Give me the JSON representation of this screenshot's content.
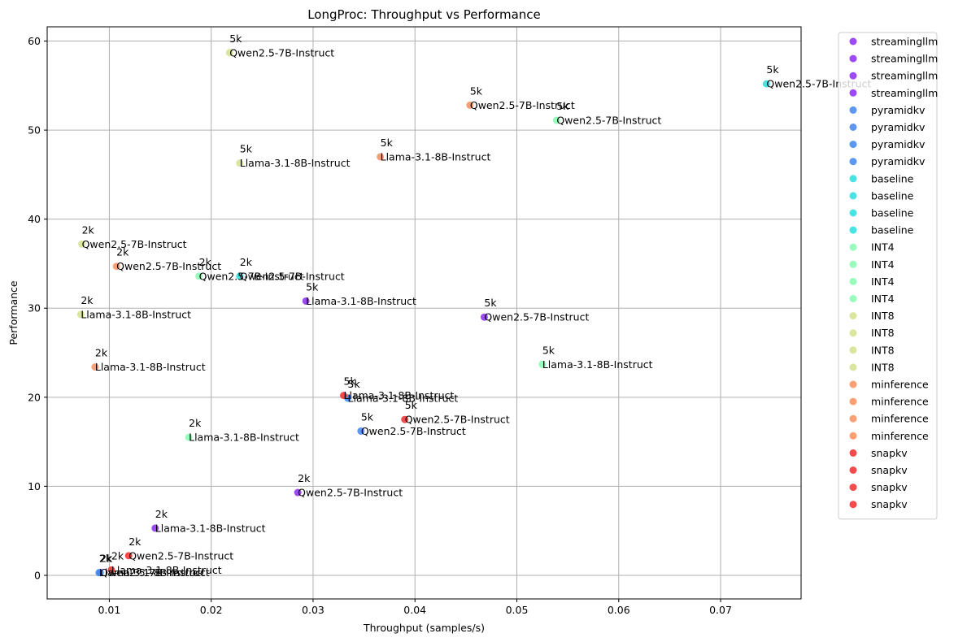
{
  "chart_data": {
    "type": "scatter",
    "title": "LongProc: Throughput vs Performance",
    "xlabel": "Throughput (samples/s)",
    "ylabel": "Performance",
    "xlim": [
      0.0039,
      0.0779
    ],
    "ylim": [
      -2.65,
      61.6
    ],
    "xticks": [
      "0.01",
      "0.02",
      "0.03",
      "0.04",
      "0.05",
      "0.06",
      "0.07"
    ],
    "yticks": [
      "0",
      "10",
      "20",
      "30",
      "40",
      "50",
      "60"
    ],
    "grid": true,
    "legend_position": "outside-right",
    "legend": [
      "streamingllm",
      "streamingllm",
      "streamingllm",
      "streamingllm",
      "pyramidkv",
      "pyramidkv",
      "pyramidkv",
      "pyramidkv",
      "baseline",
      "baseline",
      "baseline",
      "baseline",
      "INT4",
      "INT4",
      "INT4",
      "INT4",
      "INT8",
      "INT8",
      "INT8",
      "INT8",
      "minference",
      "minference",
      "minference",
      "minference",
      "snapkv",
      "snapkv",
      "snapkv",
      "snapkv"
    ],
    "series": [
      {
        "name": "streamingllm",
        "color": "#8b2cf5",
        "points": [
          {
            "x": 0.0145,
            "y": 5.3,
            "length": "2k",
            "model": "Llama-3.1-8B-Instruct"
          },
          {
            "x": 0.0285,
            "y": 9.3,
            "length": "2k",
            "model": "Qwen2.5-7B-Instruct"
          },
          {
            "x": 0.0293,
            "y": 30.8,
            "length": "5k",
            "model": "Llama-3.1-8B-Instruct"
          },
          {
            "x": 0.0468,
            "y": 29.0,
            "length": "5k",
            "model": "Qwen2.5-7B-Instruct"
          }
        ]
      },
      {
        "name": "pyramidkv",
        "color": "#3f85f0",
        "points": [
          {
            "x": 0.009,
            "y": 0.3,
            "length": "2k",
            "model": "Llama-3.1-8B-Instruct"
          },
          {
            "x": 0.0091,
            "y": 0.3,
            "length": "2k",
            "model": "Qwen2.5-7B-Instruct"
          },
          {
            "x": 0.0334,
            "y": 19.9,
            "length": "5k",
            "model": "Llama-3.1-8B-Instruct"
          },
          {
            "x": 0.0347,
            "y": 16.2,
            "length": "5k",
            "model": "Qwen2.5-7B-Instruct"
          }
        ]
      },
      {
        "name": "baseline",
        "color": "#2adddd",
        "points": [
          {
            "x": 0.0228,
            "y": 33.6,
            "length": "2k",
            "model": "Qwen2.5-7B-Instruct"
          },
          {
            "x": 0.0745,
            "y": 55.2,
            "length": "5k",
            "model": "Qwen2.5-7B-Instruct"
          }
        ]
      },
      {
        "name": "INT4",
        "color": "#86fcb2",
        "points": [
          {
            "x": 0.0178,
            "y": 15.5,
            "length": "2k",
            "model": "Llama-3.1-8B-Instruct"
          },
          {
            "x": 0.0188,
            "y": 33.6,
            "length": "2k",
            "model": "Qwen2.5-7B-Instruct"
          },
          {
            "x": 0.0525,
            "y": 23.7,
            "length": "5k",
            "model": "Llama-3.1-8B-Instruct"
          },
          {
            "x": 0.0539,
            "y": 51.1,
            "length": "5k",
            "model": "Qwen2.5-7B-Instruct"
          }
        ]
      },
      {
        "name": "INT8",
        "color": "#d4e18c",
        "points": [
          {
            "x": 0.0072,
            "y": 29.3,
            "length": "2k",
            "model": "Llama-3.1-8B-Instruct"
          },
          {
            "x": 0.0073,
            "y": 37.2,
            "length": "2k",
            "model": "Qwen2.5-7B-Instruct"
          },
          {
            "x": 0.0228,
            "y": 46.3,
            "length": "5k",
            "model": "Llama-3.1-8B-Instruct"
          },
          {
            "x": 0.0218,
            "y": 58.7,
            "length": "5k",
            "model": "Qwen2.5-7B-Instruct"
          }
        ]
      },
      {
        "name": "minference",
        "color": "#fb8f5a",
        "points": [
          {
            "x": 0.0086,
            "y": 23.4,
            "length": "2k",
            "model": "Llama-3.1-8B-Instruct"
          },
          {
            "x": 0.0107,
            "y": 34.7,
            "length": "2k",
            "model": "Qwen2.5-7B-Instruct"
          },
          {
            "x": 0.0366,
            "y": 47.0,
            "length": "5k",
            "model": "Llama-3.1-8B-Instruct"
          },
          {
            "x": 0.0454,
            "y": 52.8,
            "length": "5k",
            "model": "Qwen2.5-7B-Instruct"
          }
        ]
      },
      {
        "name": "snapkv",
        "color": "#f22d2d",
        "points": [
          {
            "x": 0.0102,
            "y": 0.6,
            "length": "2k",
            "model": "Llama-3.1-8B-Instruct"
          },
          {
            "x": 0.0119,
            "y": 2.2,
            "length": "2k",
            "model": "Qwen2.5-7B-Instruct"
          },
          {
            "x": 0.033,
            "y": 20.2,
            "length": "5k",
            "model": "Llama-3.1-8B-Instruct"
          },
          {
            "x": 0.039,
            "y": 17.5,
            "length": "5k",
            "model": "Qwen2.5-7B-Instruct"
          }
        ]
      }
    ]
  }
}
